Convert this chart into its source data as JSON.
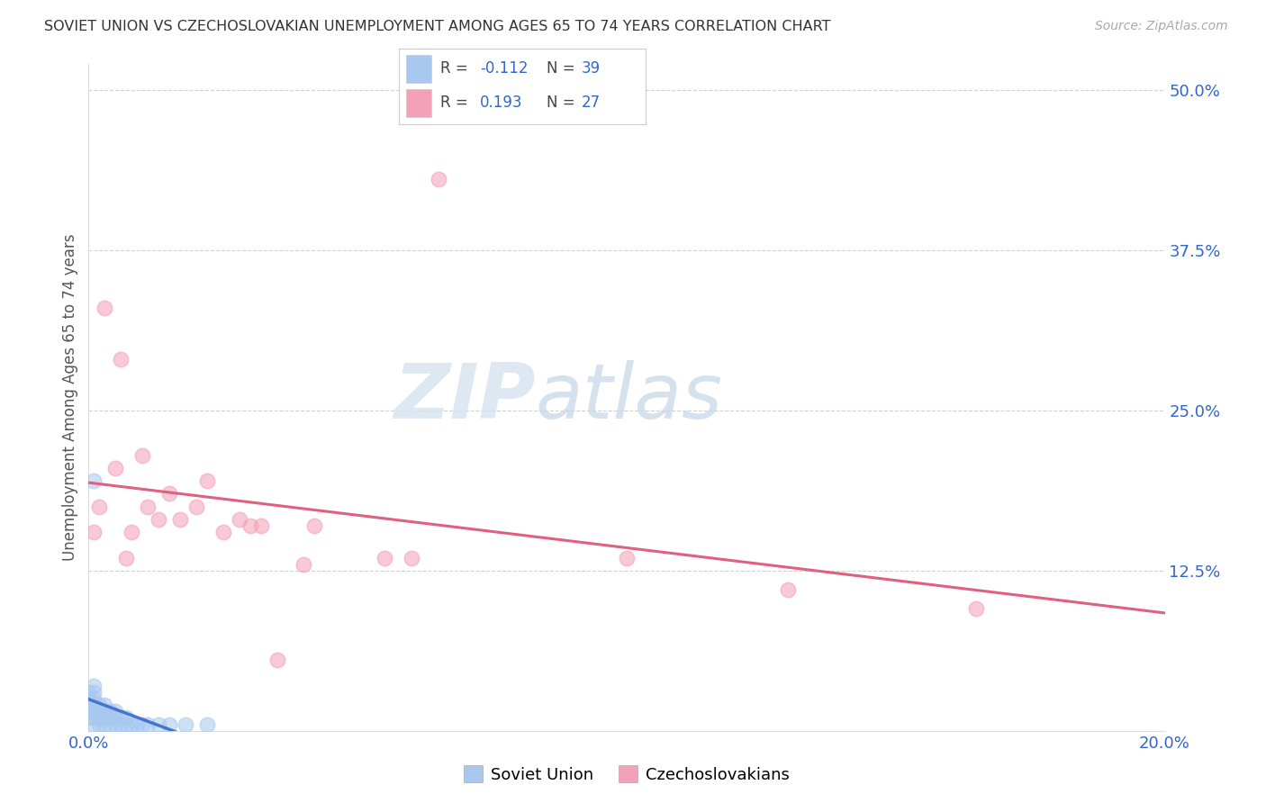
{
  "title": "SOVIET UNION VS CZECHOSLOVAKIAN UNEMPLOYMENT AMONG AGES 65 TO 74 YEARS CORRELATION CHART",
  "source": "Source: ZipAtlas.com",
  "ylabel": "Unemployment Among Ages 65 to 74 years",
  "xlim": [
    0.0,
    0.2
  ],
  "ylim": [
    0.0,
    0.52
  ],
  "yticks": [
    0.0,
    0.125,
    0.25,
    0.375,
    0.5
  ],
  "ytick_labels": [
    "",
    "12.5%",
    "25.0%",
    "37.5%",
    "50.0%"
  ],
  "color_soviet": "#a8c8f0",
  "color_czech": "#f4a0b8",
  "color_soviet_line": "#4477cc",
  "color_czech_line": "#e06080",
  "R_soviet": -0.112,
  "N_soviet": 39,
  "R_czech": 0.193,
  "N_czech": 27,
  "soviet_x": [
    0.0,
    0.0,
    0.0,
    0.0,
    0.0,
    0.001,
    0.001,
    0.001,
    0.001,
    0.001,
    0.001,
    0.001,
    0.002,
    0.002,
    0.002,
    0.002,
    0.003,
    0.003,
    0.003,
    0.003,
    0.004,
    0.004,
    0.004,
    0.005,
    0.005,
    0.005,
    0.006,
    0.006,
    0.007,
    0.007,
    0.008,
    0.009,
    0.01,
    0.011,
    0.013,
    0.015,
    0.018,
    0.022,
    0.001
  ],
  "soviet_y": [
    0.01,
    0.015,
    0.02,
    0.025,
    0.03,
    0.005,
    0.01,
    0.015,
    0.02,
    0.025,
    0.03,
    0.035,
    0.005,
    0.01,
    0.015,
    0.02,
    0.005,
    0.01,
    0.015,
    0.02,
    0.005,
    0.01,
    0.015,
    0.005,
    0.01,
    0.015,
    0.005,
    0.01,
    0.005,
    0.01,
    0.005,
    0.005,
    0.005,
    0.005,
    0.005,
    0.005,
    0.005,
    0.005,
    0.195
  ],
  "czech_x": [
    0.001,
    0.002,
    0.003,
    0.005,
    0.006,
    0.007,
    0.008,
    0.01,
    0.011,
    0.013,
    0.015,
    0.017,
    0.02,
    0.022,
    0.025,
    0.028,
    0.03,
    0.032,
    0.04,
    0.042,
    0.055,
    0.06,
    0.065,
    0.1,
    0.13,
    0.165,
    0.035
  ],
  "czech_y": [
    0.155,
    0.175,
    0.33,
    0.205,
    0.29,
    0.135,
    0.155,
    0.215,
    0.175,
    0.165,
    0.185,
    0.165,
    0.175,
    0.195,
    0.155,
    0.165,
    0.16,
    0.16,
    0.13,
    0.16,
    0.135,
    0.135,
    0.43,
    0.135,
    0.11,
    0.095,
    0.055
  ],
  "background_color": "#ffffff",
  "grid_color": "#cccccc",
  "watermark_zip": "ZIP",
  "watermark_atlas": "atlas"
}
